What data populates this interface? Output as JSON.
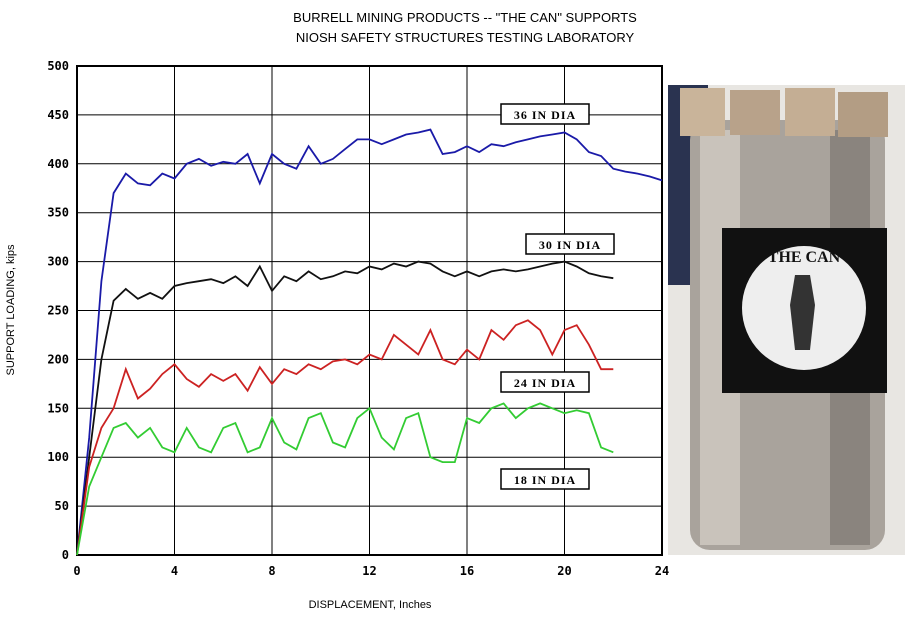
{
  "chart_data": {
    "type": "line",
    "title": [
      "BURRELL MINING PRODUCTS -- \"THE CAN\" SUPPORTS",
      "NIOSH SAFETY STRUCTURES TESTING LABORATORY"
    ],
    "xlabel": "DISPLACEMENT, Inches",
    "ylabel": "SUPPORT LOADING, kips",
    "xlim": [
      0,
      24
    ],
    "xticks": [
      0,
      4,
      8,
      12,
      16,
      20,
      24
    ],
    "ylim": [
      0,
      500
    ],
    "yticks": [
      0,
      50,
      100,
      150,
      200,
      250,
      300,
      350,
      400,
      450,
      500
    ],
    "grid": true,
    "x": [
      0,
      0.5,
      1,
      1.5,
      2,
      2.5,
      3,
      3.5,
      4,
      4.5,
      5,
      5.5,
      6,
      6.5,
      7,
      7.5,
      8,
      8.5,
      9,
      9.5,
      10,
      10.5,
      11,
      11.5,
      12,
      12.5,
      13,
      13.5,
      14,
      14.5,
      15,
      15.5,
      16,
      16.5,
      17,
      17.5,
      18,
      18.5,
      19,
      19.5,
      20,
      20.5,
      21,
      21.5,
      22,
      22.5,
      23,
      23.5,
      24
    ],
    "series": [
      {
        "name": "36 IN DIA",
        "color": "#1a1aa8",
        "values": [
          0,
          120,
          280,
          370,
          390,
          380,
          378,
          390,
          385,
          400,
          405,
          398,
          402,
          400,
          410,
          380,
          410,
          400,
          395,
          418,
          400,
          405,
          415,
          425,
          425,
          420,
          425,
          430,
          432,
          435,
          410,
          412,
          418,
          412,
          420,
          418,
          422,
          425,
          428,
          430,
          432,
          425,
          412,
          408,
          395,
          392,
          390,
          387,
          383
        ]
      },
      {
        "name": "30 IN DIA",
        "color": "#111111",
        "values": [
          0,
          100,
          200,
          260,
          272,
          262,
          268,
          262,
          275,
          278,
          280,
          282,
          278,
          285,
          275,
          295,
          270,
          285,
          280,
          290,
          282,
          285,
          290,
          288,
          295,
          292,
          298,
          295,
          300,
          298,
          290,
          285,
          290,
          285,
          290,
          292,
          290,
          292,
          295,
          298,
          300,
          295,
          288,
          285,
          283,
          null,
          null,
          null,
          null
        ]
      },
      {
        "name": "24 IN DIA",
        "color": "#cc2222",
        "values": [
          0,
          90,
          130,
          150,
          190,
          160,
          170,
          185,
          195,
          180,
          172,
          185,
          178,
          185,
          168,
          192,
          175,
          190,
          185,
          195,
          190,
          198,
          200,
          195,
          205,
          200,
          225,
          215,
          205,
          230,
          200,
          195,
          210,
          200,
          230,
          220,
          235,
          240,
          230,
          205,
          230,
          235,
          215,
          190,
          190,
          null,
          null,
          null,
          null
        ]
      },
      {
        "name": "18 IN DIA",
        "color": "#33cc33",
        "values": [
          0,
          70,
          100,
          130,
          135,
          120,
          130,
          110,
          105,
          130,
          110,
          105,
          130,
          135,
          105,
          110,
          140,
          115,
          108,
          140,
          145,
          115,
          110,
          140,
          150,
          120,
          108,
          140,
          145,
          100,
          95,
          95,
          140,
          135,
          150,
          155,
          140,
          150,
          155,
          150,
          145,
          148,
          145,
          110,
          105,
          null,
          null,
          null,
          null
        ]
      }
    ]
  },
  "photo": {
    "label": "THE CAN"
  }
}
